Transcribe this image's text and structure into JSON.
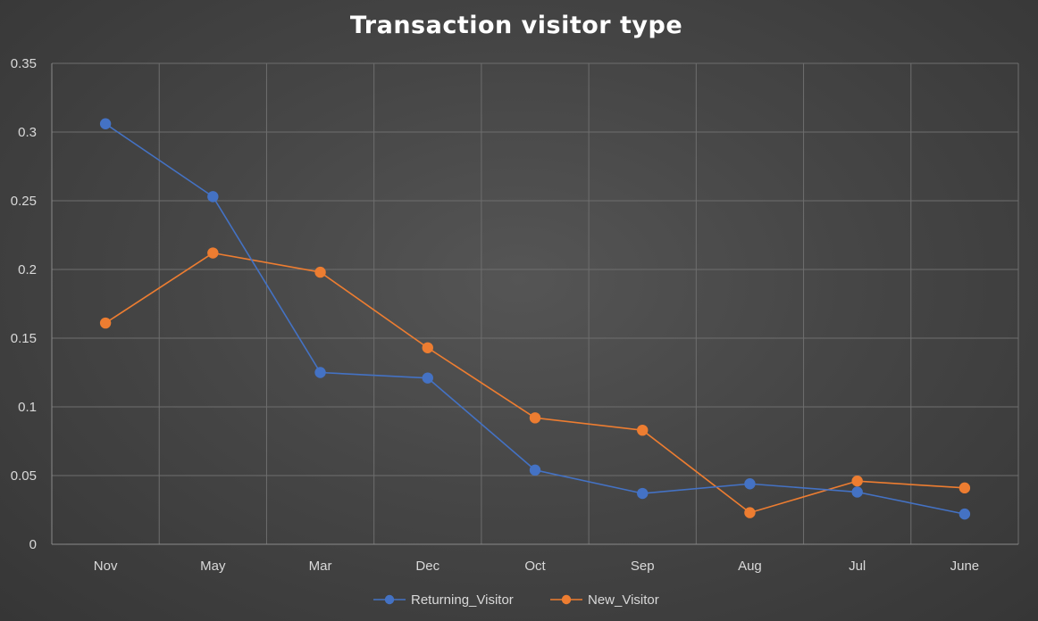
{
  "chart_data": {
    "type": "line",
    "title": "Transaction visitor type",
    "categories": [
      "Nov",
      "May",
      "Mar",
      "Dec",
      "Oct",
      "Sep",
      "Aug",
      "Jul",
      "June"
    ],
    "series": [
      {
        "name": "Returning_Visitor",
        "color": "#4472c4",
        "values": [
          0.306,
          0.253,
          0.125,
          0.121,
          0.054,
          0.037,
          0.044,
          0.038,
          0.022
        ]
      },
      {
        "name": "New_Visitor",
        "color": "#ed7d31",
        "values": [
          0.161,
          0.212,
          0.198,
          0.143,
          0.092,
          0.083,
          0.023,
          0.046,
          0.041
        ]
      }
    ],
    "ylim": [
      0,
      0.35
    ],
    "yticks": [
      "0",
      "0.05",
      "0.1",
      "0.15",
      "0.2",
      "0.25",
      "0.3",
      "0.35"
    ],
    "grid": true,
    "legend_position": "bottom"
  }
}
